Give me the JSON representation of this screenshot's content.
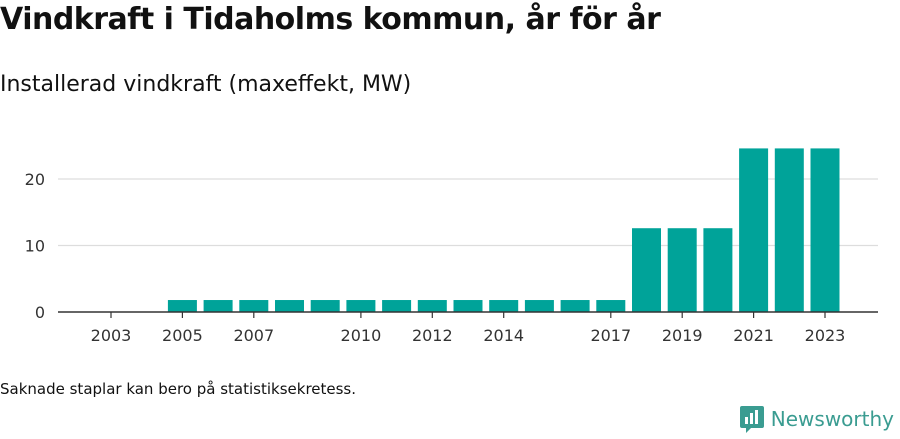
{
  "colors": {
    "bar": "#00a399",
    "grid": "#dddddd",
    "axis": "#333333",
    "brand": "#3a9c91"
  },
  "chart_data": {
    "type": "bar",
    "title": "Vindkraft i Tidaholms kommun, år för år",
    "subtitle": "Installerad vindkraft (maxeffekt, MW)",
    "categories": [
      "2003",
      "2004",
      "2005",
      "2006",
      "2007",
      "2008",
      "2009",
      "2010",
      "2011",
      "2012",
      "2013",
      "2014",
      "2015",
      "2016",
      "2017",
      "2018",
      "2019",
      "2020",
      "2021",
      "2022",
      "2023"
    ],
    "values": [
      0,
      0,
      1.8,
      1.8,
      1.8,
      1.8,
      1.8,
      1.8,
      1.8,
      1.8,
      1.8,
      1.8,
      1.8,
      1.8,
      1.8,
      12.6,
      12.6,
      12.6,
      24.6,
      24.6,
      24.6
    ],
    "x_tick_labels": [
      "2003",
      "2005",
      "2007",
      "2010",
      "2012",
      "2014",
      "2017",
      "2019",
      "2021",
      "2023"
    ],
    "y_ticks": [
      0,
      10,
      20
    ],
    "ylim": [
      0,
      25
    ],
    "grid": true
  },
  "footnote": "Saknade staplar kan bero på statistiksekretess.",
  "brand": {
    "name": "Newsworthy",
    "icon": "newsworthy-logo-icon"
  }
}
